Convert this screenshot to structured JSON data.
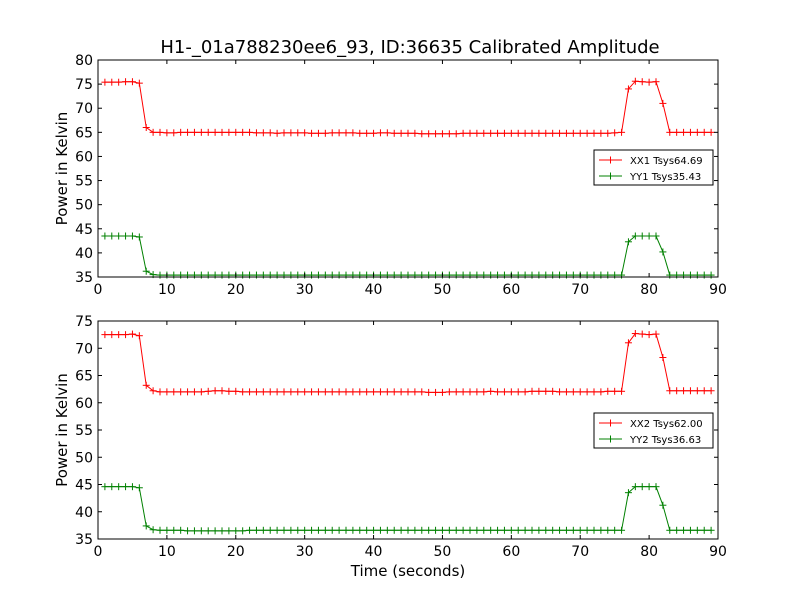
{
  "title": "H1-_01a788230ee6_93, ID:36635 Calibrated Amplitude",
  "chart_data": [
    {
      "type": "line",
      "title": "H1-_01a788230ee6_93, ID:36635 Calibrated Amplitude",
      "xlabel": "",
      "ylabel": "Power in Kelvin",
      "xlim": [
        0,
        90
      ],
      "ylim": [
        35,
        80
      ],
      "xticks": [
        0,
        10,
        20,
        30,
        40,
        50,
        60,
        70,
        80,
        90
      ],
      "yticks": [
        35,
        40,
        45,
        50,
        55,
        60,
        65,
        70,
        75,
        80
      ],
      "legend_position": "right",
      "x": [
        1,
        2,
        3,
        4,
        5,
        6,
        7,
        8,
        9,
        10,
        11,
        12,
        13,
        14,
        15,
        16,
        17,
        18,
        19,
        20,
        21,
        22,
        23,
        24,
        25,
        26,
        27,
        28,
        29,
        30,
        31,
        32,
        33,
        34,
        35,
        36,
        37,
        38,
        39,
        40,
        41,
        42,
        43,
        44,
        45,
        46,
        47,
        48,
        49,
        50,
        51,
        52,
        53,
        54,
        55,
        56,
        57,
        58,
        59,
        60,
        61,
        62,
        63,
        64,
        65,
        66,
        67,
        68,
        69,
        70,
        71,
        72,
        73,
        74,
        75,
        76,
        77,
        78,
        79,
        80,
        81,
        82,
        83,
        84,
        85,
        86,
        87,
        88,
        89
      ],
      "series": [
        {
          "name": "XX1 Tsys64.69",
          "color": "#ff0000",
          "values": [
            75.4,
            75.4,
            75.4,
            75.5,
            75.5,
            75.2,
            66.0,
            65.0,
            65.0,
            64.9,
            64.9,
            65.0,
            65.0,
            65.0,
            65.0,
            65.0,
            65.0,
            65.0,
            65.0,
            65.0,
            65.0,
            65.0,
            64.9,
            64.9,
            64.9,
            64.8,
            64.9,
            64.9,
            64.9,
            64.9,
            64.8,
            64.8,
            64.8,
            64.9,
            64.9,
            64.9,
            64.9,
            64.8,
            64.8,
            64.8,
            64.9,
            64.9,
            64.8,
            64.8,
            64.8,
            64.8,
            64.7,
            64.7,
            64.7,
            64.7,
            64.7,
            64.7,
            64.8,
            64.8,
            64.8,
            64.8,
            64.8,
            64.8,
            64.8,
            64.8,
            64.8,
            64.8,
            64.8,
            64.8,
            64.8,
            64.8,
            64.8,
            64.8,
            64.8,
            64.8,
            64.8,
            64.8,
            64.8,
            64.8,
            64.9,
            65.0,
            74.0,
            75.6,
            75.5,
            75.4,
            75.5,
            71.0,
            65.0,
            65.0,
            65.0,
            65.0,
            65.0,
            65.0,
            65.0
          ]
        },
        {
          "name": "YY1 Tsys35.43",
          "color": "#008000",
          "values": [
            43.5,
            43.5,
            43.5,
            43.5,
            43.5,
            43.3,
            36.2,
            35.5,
            35.4,
            35.4,
            35.4,
            35.4,
            35.4,
            35.4,
            35.4,
            35.4,
            35.4,
            35.4,
            35.4,
            35.4,
            35.4,
            35.4,
            35.4,
            35.4,
            35.4,
            35.4,
            35.4,
            35.4,
            35.4,
            35.4,
            35.4,
            35.4,
            35.4,
            35.4,
            35.4,
            35.4,
            35.4,
            35.4,
            35.4,
            35.4,
            35.4,
            35.4,
            35.4,
            35.4,
            35.4,
            35.4,
            35.4,
            35.4,
            35.4,
            35.4,
            35.4,
            35.4,
            35.4,
            35.4,
            35.4,
            35.4,
            35.4,
            35.4,
            35.4,
            35.4,
            35.4,
            35.4,
            35.4,
            35.4,
            35.4,
            35.4,
            35.4,
            35.4,
            35.4,
            35.4,
            35.4,
            35.4,
            35.4,
            35.4,
            35.4,
            35.4,
            42.3,
            43.5,
            43.5,
            43.5,
            43.5,
            40.2,
            35.4,
            35.4,
            35.4,
            35.4,
            35.4,
            35.4,
            35.4
          ]
        }
      ]
    },
    {
      "type": "line",
      "title": "",
      "xlabel": "Time (seconds)",
      "ylabel": "Power in Kelvin",
      "xlim": [
        0,
        90
      ],
      "ylim": [
        35,
        75
      ],
      "xticks": [
        0,
        10,
        20,
        30,
        40,
        50,
        60,
        70,
        80,
        90
      ],
      "yticks": [
        35,
        40,
        45,
        50,
        55,
        60,
        65,
        70,
        75
      ],
      "legend_position": "right",
      "x": [
        1,
        2,
        3,
        4,
        5,
        6,
        7,
        8,
        9,
        10,
        11,
        12,
        13,
        14,
        15,
        16,
        17,
        18,
        19,
        20,
        21,
        22,
        23,
        24,
        25,
        26,
        27,
        28,
        29,
        30,
        31,
        32,
        33,
        34,
        35,
        36,
        37,
        38,
        39,
        40,
        41,
        42,
        43,
        44,
        45,
        46,
        47,
        48,
        49,
        50,
        51,
        52,
        53,
        54,
        55,
        56,
        57,
        58,
        59,
        60,
        61,
        62,
        63,
        64,
        65,
        66,
        67,
        68,
        69,
        70,
        71,
        72,
        73,
        74,
        75,
        76,
        77,
        78,
        79,
        80,
        81,
        82,
        83,
        84,
        85,
        86,
        87,
        88,
        89
      ],
      "series": [
        {
          "name": "XX2 Tsys62.00",
          "color": "#ff0000",
          "values": [
            72.5,
            72.5,
            72.5,
            72.5,
            72.6,
            72.3,
            63.2,
            62.2,
            62.0,
            62.0,
            62.0,
            62.0,
            62.0,
            62.0,
            62.0,
            62.1,
            62.2,
            62.2,
            62.1,
            62.1,
            62.0,
            62.0,
            62.0,
            62.0,
            62.0,
            62.0,
            62.0,
            62.0,
            62.0,
            62.0,
            62.0,
            62.0,
            62.0,
            62.0,
            62.0,
            62.0,
            62.0,
            62.0,
            62.0,
            62.0,
            62.0,
            62.0,
            62.0,
            62.0,
            62.0,
            62.0,
            62.0,
            61.9,
            61.9,
            61.9,
            62.0,
            62.0,
            62.0,
            62.0,
            62.0,
            62.0,
            62.1,
            62.0,
            62.0,
            62.0,
            62.0,
            62.0,
            62.1,
            62.1,
            62.1,
            62.1,
            62.0,
            62.0,
            62.0,
            62.0,
            62.0,
            62.0,
            62.0,
            62.1,
            62.1,
            62.1,
            71.0,
            72.7,
            72.6,
            72.5,
            72.6,
            68.3,
            62.2,
            62.2,
            62.2,
            62.2,
            62.2,
            62.2,
            62.2
          ]
        },
        {
          "name": "YY2 Tsys36.63",
          "color": "#008000",
          "values": [
            44.6,
            44.6,
            44.6,
            44.6,
            44.6,
            44.4,
            37.4,
            36.7,
            36.6,
            36.6,
            36.6,
            36.6,
            36.5,
            36.5,
            36.5,
            36.5,
            36.5,
            36.5,
            36.5,
            36.5,
            36.5,
            36.6,
            36.6,
            36.6,
            36.6,
            36.6,
            36.6,
            36.6,
            36.6,
            36.6,
            36.6,
            36.6,
            36.6,
            36.6,
            36.6,
            36.6,
            36.6,
            36.6,
            36.6,
            36.6,
            36.6,
            36.6,
            36.6,
            36.6,
            36.6,
            36.6,
            36.6,
            36.6,
            36.6,
            36.6,
            36.6,
            36.6,
            36.6,
            36.6,
            36.6,
            36.6,
            36.6,
            36.6,
            36.6,
            36.6,
            36.6,
            36.6,
            36.6,
            36.6,
            36.6,
            36.6,
            36.6,
            36.6,
            36.6,
            36.6,
            36.6,
            36.6,
            36.6,
            36.6,
            36.6,
            36.6,
            43.5,
            44.6,
            44.6,
            44.6,
            44.6,
            41.2,
            36.6,
            36.6,
            36.6,
            36.6,
            36.6,
            36.6,
            36.6
          ]
        }
      ]
    }
  ]
}
